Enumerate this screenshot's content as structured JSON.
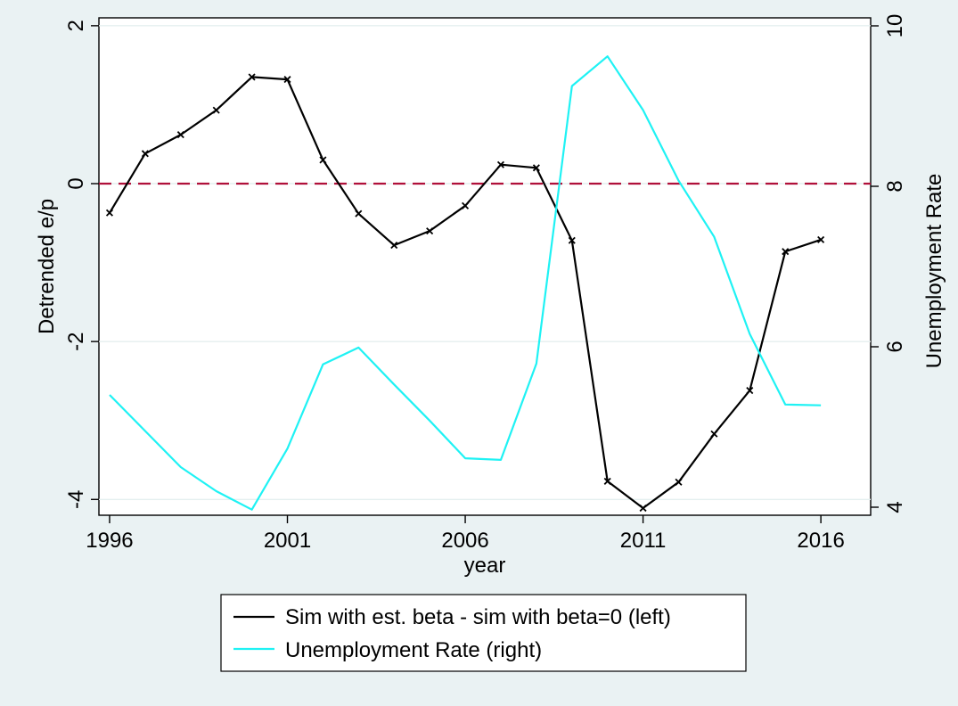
{
  "chart_data": {
    "type": "line",
    "title": "",
    "xlabel": "year",
    "ylabel_left": "Detrended e/p",
    "ylabel_right": "Unemployment Rate",
    "xlim": [
      1995.7,
      2017.4
    ],
    "ylim_left": [
      -4.2,
      2.1
    ],
    "ylim_right": [
      3.9,
      10.1
    ],
    "x_ticks": [
      1996,
      2001,
      2006,
      2011,
      2016
    ],
    "y_ticks_left": [
      -4,
      -2,
      0,
      2
    ],
    "y_ticks_right": [
      4,
      6,
      8,
      10
    ],
    "grid": "horizontal",
    "reference_line": {
      "axis": "left",
      "y": 0,
      "style": "dashed",
      "color": "#b0103a"
    },
    "legend_position": "bottom",
    "series": [
      {
        "name": "Sim with est. beta - sim with beta=0 (left)",
        "axis": "left",
        "color": "#000000",
        "marker": "x",
        "x": [
          1996,
          1997,
          1998,
          1999,
          2000,
          2001,
          2002,
          2003,
          2004,
          2005,
          2006,
          2007,
          2008,
          2009,
          2010,
          2011,
          2012,
          2013,
          2014,
          2015,
          2016
        ],
        "y": [
          -0.37,
          0.38,
          0.62,
          0.93,
          1.35,
          1.32,
          0.3,
          -0.38,
          -0.78,
          -0.6,
          -0.28,
          0.24,
          0.2,
          -0.72,
          -3.77,
          -4.11,
          -3.78,
          -3.17,
          -2.62,
          -0.86,
          -0.71
        ]
      },
      {
        "name": "Unemployment Rate (right)",
        "axis": "right",
        "color": "#1ff2f4",
        "marker": "none",
        "x": [
          1996,
          1997,
          1998,
          1999,
          2000,
          2001,
          2002,
          2003,
          2004,
          2005,
          2006,
          2007,
          2008,
          2009,
          2010,
          2011,
          2012,
          2013,
          2014,
          2015,
          2016
        ],
        "y": [
          5.4,
          4.95,
          4.5,
          4.2,
          3.97,
          4.73,
          5.78,
          5.99,
          5.53,
          5.08,
          4.61,
          4.59,
          5.79,
          9.25,
          9.62,
          8.95,
          8.07,
          7.37,
          6.16,
          5.28,
          5.27
        ]
      }
    ]
  }
}
